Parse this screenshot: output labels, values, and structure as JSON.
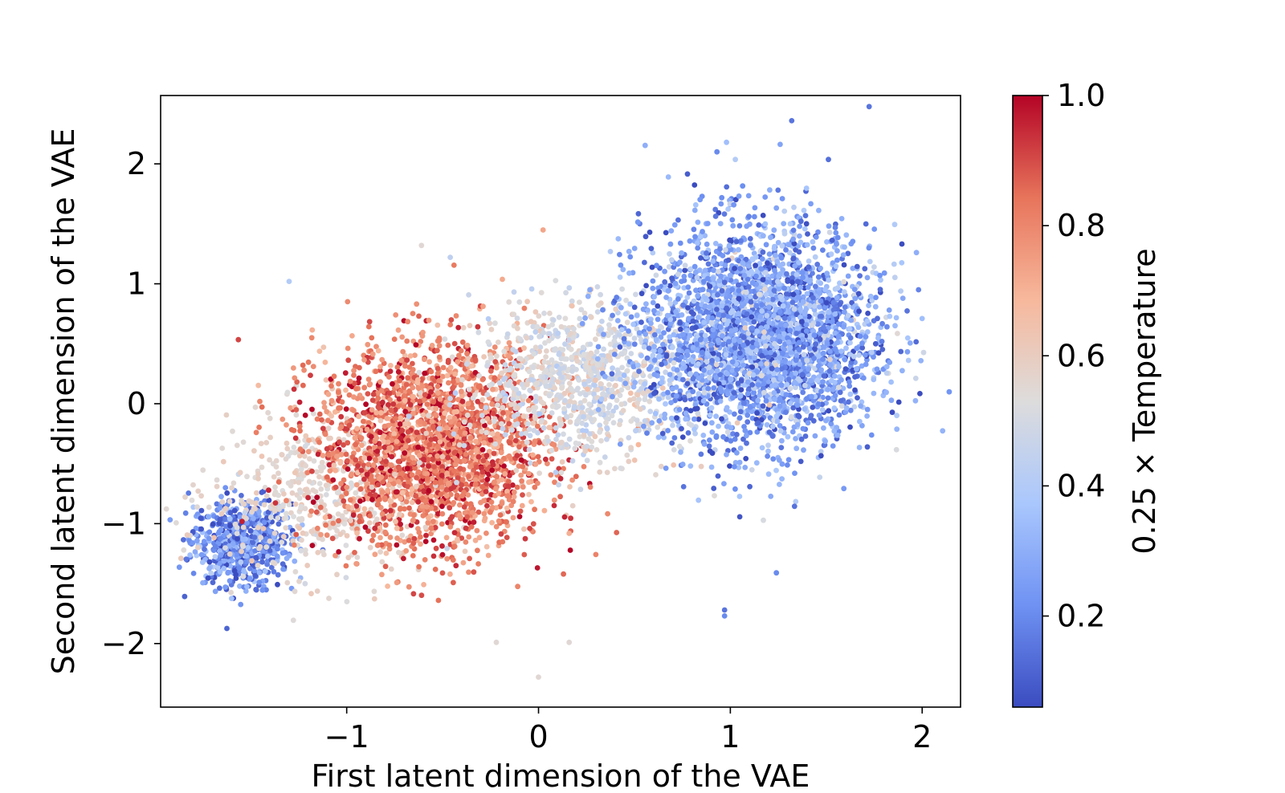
{
  "chart_data": {
    "type": "scatter",
    "xlabel": "First latent dimension of the VAE",
    "ylabel": "Second latent dimension of the VAE",
    "xlim": [
      -1.97,
      2.2
    ],
    "ylim": [
      -2.53,
      2.57
    ],
    "xticks": [
      -1,
      0,
      1,
      2
    ],
    "yticks": [
      -2,
      -1,
      0,
      1,
      2
    ],
    "grid": false,
    "colormap": "coolwarm",
    "colorbar": {
      "label": "0.25 × Temperature",
      "range": [
        0.06,
        1.0
      ],
      "ticks": [
        0.2,
        0.4,
        0.6,
        0.8,
        1.0
      ],
      "tick_labels": [
        "0.2",
        "0.4",
        "0.6",
        "0.8",
        "1.0"
      ],
      "colors": [
        "#3b4cc0",
        "#6f92f3",
        "#aac7fd",
        "#dddcdc",
        "#f7b89c",
        "#e7745b",
        "#b40426"
      ]
    },
    "clusters": [
      {
        "center": [
          -1.55,
          -1.15
        ],
        "spread": [
          0.13,
          0.18
        ],
        "count": 650,
        "color_value_mean": 0.2,
        "color_value_spread": 0.1
      },
      {
        "center": [
          -1.15,
          -0.8
        ],
        "spread": [
          0.28,
          0.32
        ],
        "count": 450,
        "color_value_mean": 0.56,
        "color_value_spread": 0.03
      },
      {
        "center": [
          -0.55,
          -0.35
        ],
        "spread": [
          0.3,
          0.42
        ],
        "count": 2400,
        "color_value_mean": 0.82,
        "color_value_spread": 0.1
      },
      {
        "center": [
          0.2,
          0.2
        ],
        "spread": [
          0.28,
          0.32
        ],
        "count": 900,
        "color_value_mean": 0.52,
        "color_value_spread": 0.05
      },
      {
        "center": [
          1.15,
          0.55
        ],
        "spread": [
          0.3,
          0.45
        ],
        "count": 3200,
        "color_value_mean": 0.26,
        "color_value_spread": 0.12
      }
    ],
    "outliers": [
      {
        "x": 1.32,
        "y": 2.36,
        "c": 0.15
      },
      {
        "x": 0.98,
        "y": 2.18,
        "c": 0.35
      },
      {
        "x": 0.93,
        "y": 2.1,
        "c": 0.2
      },
      {
        "x": 0.97,
        "y": -1.72,
        "c": 0.15
      },
      {
        "x": 0.97,
        "y": -1.77,
        "c": 0.2
      },
      {
        "x": 1.24,
        "y": -1.41,
        "c": 0.2
      },
      {
        "x": 0.0,
        "y": -2.28,
        "c": 0.55
      },
      {
        "x": -0.22,
        "y": -1.99,
        "c": 0.55
      },
      {
        "x": 0.16,
        "y": -1.99,
        "c": 0.55
      },
      {
        "x": -0.61,
        "y": 1.32,
        "c": 0.55
      },
      {
        "x": -1.3,
        "y": 1.02,
        "c": 0.4
      },
      {
        "x": 2.0,
        "y": 0.71,
        "c": 0.35
      },
      {
        "x": 1.97,
        "y": 1.26,
        "c": 0.3
      },
      {
        "x": -0.43,
        "y": -1.35,
        "c": 0.95
      }
    ]
  }
}
